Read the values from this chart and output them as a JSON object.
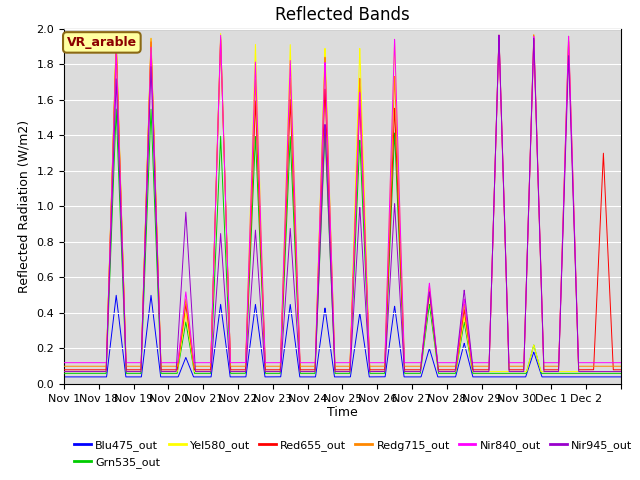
{
  "title": "Reflected Bands",
  "xlabel": "Time",
  "ylabel": "Reflected Radiation (W/m2)",
  "annotation": "VR_arable",
  "ylim": [
    0,
    2.0
  ],
  "background_color": "#dcdcdc",
  "legend_entries": [
    "Blu475_out",
    "Grn535_out",
    "Yel580_out",
    "Red655_out",
    "Redg715_out",
    "Nir840_out",
    "Nir945_out"
  ],
  "legend_colors": [
    "#0000ff",
    "#00cc00",
    "#ffff00",
    "#ff0000",
    "#ff8800",
    "#ff00ff",
    "#9900cc"
  ],
  "title_fontsize": 12,
  "axis_label_fontsize": 9,
  "tick_fontsize": 8,
  "xtick_labels": [
    "Nov 1",
    "Nov 18",
    "Nov 19",
    "Nov 20",
    "Nov 21",
    "Nov 22",
    "Nov 23",
    "Nov 24",
    "Nov 25",
    "Nov 26",
    "Nov 27",
    "Nov 28",
    "Nov 29",
    "Nov 30",
    "Dec 1",
    "Dec 2"
  ],
  "num_days": 16
}
